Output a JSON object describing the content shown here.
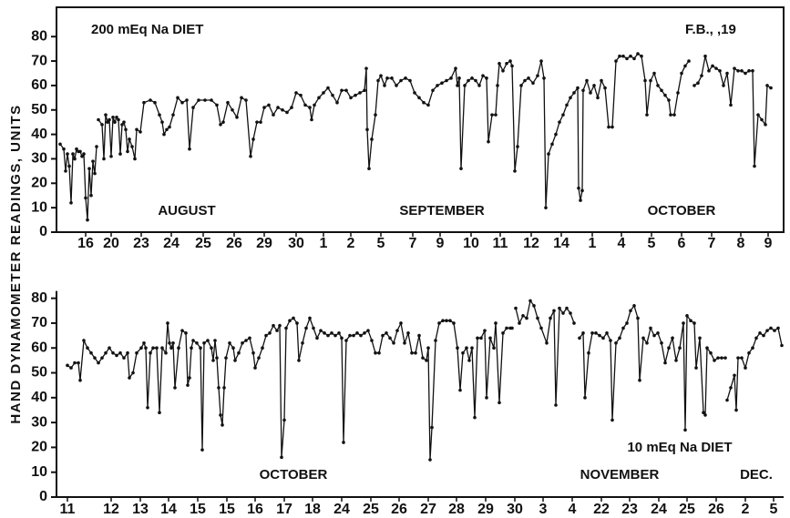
{
  "chart_data": [
    {
      "type": "line",
      "ylabel": "HAND DYNAMOMETER READINGS, UNITS",
      "annotations": [
        "200 mEq Na DIET",
        "F.B.,   ,19",
        "AUGUST",
        "SEPTEMBER",
        "OCTOBER"
      ],
      "xlim": [
        0,
        79.8
      ],
      "ylim": [
        0,
        92
      ],
      "yticks": [
        0,
        10,
        20,
        30,
        40,
        50,
        60,
        70,
        80
      ],
      "xticks": [
        {
          "value": 3.2,
          "label": "16"
        },
        {
          "value": 6,
          "label": "20"
        },
        {
          "value": 9.3,
          "label": "23"
        },
        {
          "value": 12.6,
          "label": "24"
        },
        {
          "value": 16.1,
          "label": "25"
        },
        {
          "value": 19.5,
          "label": "26"
        },
        {
          "value": 22.8,
          "label": "29"
        },
        {
          "value": 26.3,
          "label": "30"
        },
        {
          "value": 29.3,
          "label": "1"
        },
        {
          "value": 32.3,
          "label": "2"
        },
        {
          "value": 35.6,
          "label": "5"
        },
        {
          "value": 39.1,
          "label": "7"
        },
        {
          "value": 42.1,
          "label": "9"
        },
        {
          "value": 45.5,
          "label": "10"
        },
        {
          "value": 48.7,
          "label": "11"
        },
        {
          "value": 52.1,
          "label": "12"
        },
        {
          "value": 55.4,
          "label": "14"
        },
        {
          "value": 58.8,
          "label": "1"
        },
        {
          "value": 62,
          "label": "4"
        },
        {
          "value": 65.3,
          "label": "5"
        },
        {
          "value": 68.6,
          "label": "6"
        },
        {
          "value": 71.9,
          "label": "7"
        },
        {
          "value": 75.1,
          "label": "8"
        },
        {
          "value": 78.1,
          "label": "9"
        }
      ],
      "color": "#111111",
      "x": [
        0.4,
        0.8,
        1,
        1.2,
        1.4,
        1.6,
        1.8,
        2,
        2.2,
        2.4,
        2.6,
        2.8,
        3,
        3.2,
        3.4,
        3.6,
        3.8,
        4,
        4.2,
        4.4,
        4.5,
        4.6,
        5,
        5.2,
        5.4,
        5.6,
        5.8,
        6,
        6.2,
        6.4,
        6.6,
        6.8,
        7,
        7.2,
        7.4,
        7.6,
        7.8,
        8,
        8.3,
        8.6,
        8.8,
        9.2,
        9.6,
        10.3,
        10.8,
        11.3,
        11.6,
        11.8,
        12.1,
        12.4,
        12.8,
        13.3,
        13.8,
        14.3,
        14.6,
        15,
        15.6,
        16.3,
        17,
        17.6,
        18,
        18.3,
        18.8,
        19.3,
        19.8,
        20.3,
        20.8,
        21.3,
        21.6,
        22,
        22.4,
        22.8,
        23.3,
        23.8,
        24.3,
        24.8,
        25.3,
        25.8,
        26.3,
        26.8,
        27.3,
        27.8,
        28,
        28.3,
        28.8,
        29.3,
        29.8,
        30.3,
        30.8,
        31.3,
        31.8,
        32.3,
        32.8,
        33.3,
        33.8,
        34,
        34.1,
        34.3,
        34.6,
        35,
        35.3,
        35.6,
        36,
        36.3,
        36.8,
        37.3,
        37.8,
        38.3,
        38.8,
        39.3,
        39.8,
        40.3,
        40.8,
        41.3,
        41.8,
        42.3,
        42.8,
        43.3,
        43.8,
        44,
        44.2,
        44.4,
        44.8,
        45.2,
        45.6,
        46,
        46.4,
        46.8,
        47.2,
        47.4,
        47.8,
        48.2,
        48.4,
        48.6,
        49,
        49.4,
        49.8,
        50,
        50.3,
        50.6,
        51,
        51.4,
        51.8,
        52.3,
        52.8,
        53.2,
        53.5,
        53.7,
        54,
        54.4,
        54.8,
        55.2,
        55.6,
        56,
        56.4,
        56.8,
        57.2,
        57.3,
        57.5,
        57.7,
        57.8,
        58.2,
        58.6,
        59,
        59.4,
        59.8,
        60.2,
        60.6,
        61,
        61.4,
        61.8,
        62.2,
        62.6,
        63,
        63.4,
        63.8,
        64.2,
        64.6,
        64.8,
        65.2,
        65.6,
        66,
        66.4,
        66.8,
        67.2,
        67.4,
        67.8,
        68.2,
        68.6,
        69,
        69.4,
        69.7,
        70,
        70.4,
        70.8,
        71.2,
        71.6,
        72,
        72.4,
        72.8,
        73.2,
        73.6,
        74,
        74.4,
        74.8,
        75.2,
        75.6,
        76,
        76.4,
        76.6,
        77,
        77.4,
        77.8,
        78,
        78.4
      ],
      "values": [
        36,
        34,
        25,
        32,
        27,
        12,
        32,
        30,
        34,
        33,
        33,
        31,
        32,
        14,
        5,
        26,
        15,
        29,
        24,
        35,
        null,
        46,
        44,
        30,
        48,
        45,
        46,
        31,
        47,
        45,
        47,
        46,
        32,
        44,
        45,
        42,
        33,
        38,
        35,
        30,
        42,
        41,
        53,
        54,
        53,
        48,
        45,
        40,
        42,
        43,
        48,
        55,
        53,
        54,
        34,
        51,
        54,
        54,
        54,
        52,
        44,
        45,
        53,
        50,
        47,
        55,
        54,
        31,
        38,
        45,
        45,
        51,
        52,
        48,
        51,
        50,
        49,
        51,
        57,
        56,
        52,
        51,
        46,
        52,
        55,
        57,
        59,
        56,
        53,
        58,
        58,
        55,
        56,
        57,
        58,
        67,
        42,
        26,
        38,
        48,
        62,
        64,
        60,
        63,
        63,
        60,
        62,
        63,
        62,
        57,
        55,
        53,
        52,
        58,
        60,
        61,
        62,
        63,
        67,
        60,
        63,
        26,
        60,
        62,
        63,
        62,
        60,
        64,
        63,
        37,
        48,
        48,
        60,
        69,
        66,
        69,
        70,
        68,
        25,
        35,
        60,
        62,
        63,
        61,
        64,
        70,
        63,
        10,
        32,
        36,
        40,
        45,
        48,
        52,
        55,
        57,
        59,
        18,
        13,
        17,
        58,
        62,
        57,
        60,
        55,
        62,
        59,
        43,
        43,
        70,
        72,
        72,
        71,
        72,
        71,
        73,
        72,
        62,
        48,
        62,
        65,
        60,
        58,
        56,
        54,
        48,
        48,
        57,
        65,
        68,
        70,
        null,
        60,
        61,
        64,
        72,
        66,
        68,
        67,
        66,
        60,
        65,
        52,
        67,
        66,
        66,
        65,
        66,
        66,
        27,
        48,
        46,
        44,
        60,
        59
      ]
    },
    {
      "type": "line",
      "annotations": [
        "10 mEq Na DIET",
        "OCTOBER",
        "NOVEMBER",
        "DEC."
      ],
      "xlim": [
        0,
        79.8
      ],
      "ylim": [
        0,
        85
      ],
      "yticks": [
        0,
        10,
        20,
        30,
        40,
        50,
        60,
        70,
        80
      ],
      "xticks": [
        {
          "value": 1.2,
          "label": "11"
        },
        {
          "value": 6,
          "label": "12"
        },
        {
          "value": 9.2,
          "label": "13"
        },
        {
          "value": 12.3,
          "label": "14"
        },
        {
          "value": 15.5,
          "label": "15"
        },
        {
          "value": 18.7,
          "label": "15"
        },
        {
          "value": 21.8,
          "label": "16"
        },
        {
          "value": 25,
          "label": "17"
        },
        {
          "value": 28.1,
          "label": "18"
        },
        {
          "value": 31.3,
          "label": "24"
        },
        {
          "value": 34.5,
          "label": "25"
        },
        {
          "value": 37.6,
          "label": "26"
        },
        {
          "value": 40.8,
          "label": "27"
        },
        {
          "value": 43.9,
          "label": "28"
        },
        {
          "value": 47.1,
          "label": "29"
        },
        {
          "value": 50.3,
          "label": "30"
        },
        {
          "value": 53.4,
          "label": "3"
        },
        {
          "value": 56.6,
          "label": "4"
        },
        {
          "value": 59.8,
          "label": "22"
        },
        {
          "value": 62.9,
          "label": "23"
        },
        {
          "value": 66.1,
          "label": "24"
        },
        {
          "value": 69.2,
          "label": "25"
        },
        {
          "value": 72.4,
          "label": "26"
        },
        {
          "value": 75.6,
          "label": "2"
        },
        {
          "value": 78.7,
          "label": "5"
        }
      ],
      "color": "#111111",
      "x": [
        1.2,
        1.6,
        2,
        2.4,
        2.6,
        3,
        3.4,
        3.8,
        4.2,
        4.6,
        5,
        5.4,
        5.8,
        6.2,
        6.6,
        7,
        7.4,
        7.8,
        8,
        8.4,
        8.8,
        9.3,
        9.6,
        9.8,
        10,
        10.3,
        10.6,
        11,
        11.3,
        11.6,
        12,
        12.2,
        12.4,
        12.6,
        12.8,
        13,
        13.4,
        13.8,
        14.2,
        14.4,
        14.6,
        14.8,
        15,
        15.4,
        15.8,
        16,
        16.2,
        16.6,
        17,
        17.2,
        17.4,
        17.6,
        17.8,
        18,
        18.2,
        18.4,
        18.6,
        19,
        19.4,
        19.6,
        20,
        20.4,
        20.8,
        21.2,
        21.6,
        21.8,
        22.2,
        22.6,
        23,
        23.4,
        23.8,
        24.2,
        24.5,
        24.7,
        25,
        25.2,
        25.6,
        26,
        26.4,
        26.6,
        27,
        27.4,
        27.8,
        28.2,
        28.6,
        29,
        29.4,
        29.8,
        30.2,
        30.6,
        31,
        31.3,
        31.5,
        31.8,
        32.2,
        32.6,
        33,
        33.4,
        33.8,
        34.2,
        34.6,
        35,
        35.4,
        35.8,
        36.2,
        36.6,
        37,
        37.4,
        37.8,
        38.2,
        38.6,
        39,
        39.4,
        39.8,
        40.2,
        40.6,
        40.8,
        41,
        41.2,
        41.6,
        42,
        42.4,
        42.8,
        43.2,
        43.6,
        44,
        44.3,
        44.6,
        45,
        45.3,
        45.6,
        45.9,
        46.2,
        46.6,
        47,
        47.2,
        47.6,
        48,
        48.2,
        48.6,
        49,
        49.4,
        49.8,
        50,
        50.2,
        50.4,
        50.8,
        51.2,
        51.6,
        52,
        52.4,
        52.8,
        53.2,
        53.8,
        54.2,
        54.6,
        54.8,
        55.2,
        55.6,
        56,
        56.4,
        56.8,
        57.1,
        57.4,
        57.8,
        58,
        58.4,
        58.8,
        59.2,
        59.6,
        60,
        60.4,
        60.8,
        61,
        61.4,
        61.8,
        62.2,
        62.6,
        63,
        63.4,
        63.8,
        64,
        64.4,
        64.8,
        65.2,
        65.6,
        66,
        66.4,
        66.8,
        67.2,
        67.6,
        68,
        68.4,
        68.8,
        69,
        69.2,
        69.6,
        70,
        70.2,
        70.6,
        71,
        71.2,
        71.4,
        71.8,
        72.2,
        72.6,
        73,
        73.4,
        73.5,
        73.6,
        74,
        74.4,
        74.6,
        74.8,
        75.2,
        75.6,
        76,
        76.4,
        76.8,
        77.2,
        77.6,
        78,
        78.4,
        78.8,
        79.2,
        79.6
      ],
      "values": [
        53,
        52,
        54,
        54,
        47,
        63,
        60,
        58,
        56,
        54,
        56,
        58,
        60,
        58,
        57,
        58,
        56,
        58,
        48,
        50,
        58,
        60,
        62,
        60,
        36,
        58,
        60,
        60,
        34,
        60,
        58,
        70,
        62,
        60,
        62,
        44,
        60,
        67,
        66,
        45,
        48,
        60,
        63,
        62,
        60,
        19,
        62,
        63,
        60,
        55,
        63,
        56,
        44,
        33,
        29,
        44,
        56,
        62,
        60,
        55,
        58,
        62,
        63,
        64,
        58,
        52,
        56,
        60,
        65,
        66,
        69,
        67,
        69,
        16,
        31,
        68,
        71,
        72,
        70,
        55,
        62,
        68,
        72,
        68,
        64,
        67,
        66,
        65,
        66,
        65,
        66,
        64,
        22,
        63,
        65,
        65,
        66,
        65,
        66,
        67,
        63,
        58,
        58,
        65,
        66,
        64,
        62,
        67,
        70,
        62,
        66,
        58,
        58,
        65,
        56,
        55,
        60,
        15,
        28,
        63,
        70,
        71,
        71,
        71,
        70,
        60,
        43,
        58,
        60,
        55,
        60,
        32,
        64,
        64,
        67,
        40,
        64,
        60,
        70,
        38,
        66,
        68,
        68,
        68,
        null,
        76,
        70,
        73,
        72,
        79,
        77,
        72,
        68,
        62,
        72,
        75,
        37,
        76,
        74,
        76,
        74,
        70,
        null,
        64,
        66,
        40,
        58,
        66,
        66,
        65,
        64,
        66,
        63,
        31,
        62,
        64,
        68,
        70,
        75,
        77,
        72,
        47,
        64,
        62,
        68,
        65,
        66,
        62,
        54,
        60,
        64,
        55,
        60,
        70,
        27,
        73,
        71,
        70,
        52,
        64,
        34,
        33,
        60,
        58,
        55,
        56,
        56,
        56,
        null,
        39,
        44,
        49,
        35,
        56,
        56,
        52,
        58,
        60,
        64,
        66,
        65,
        67,
        68,
        67,
        68,
        61
      ]
    }
  ]
}
